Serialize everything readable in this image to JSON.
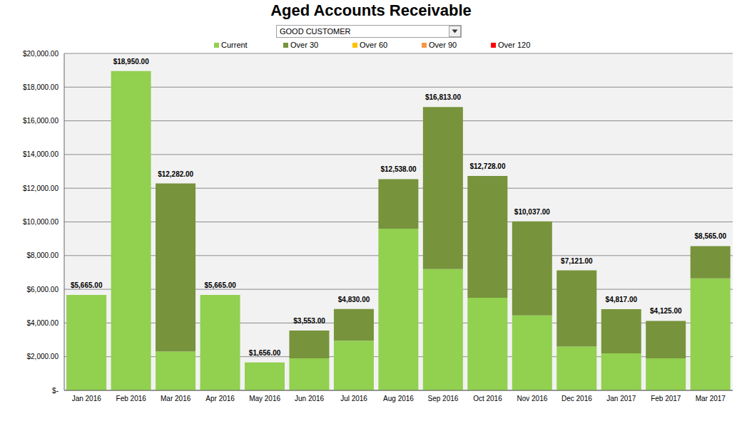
{
  "chart_data": {
    "type": "bar",
    "title": "Aged Accounts Receivable",
    "subtitle": "GOOD CUSTOMER",
    "categories": [
      "Jan 2016",
      "Feb 2016",
      "Mar 2016",
      "Apr 2016",
      "May 2016",
      "Jun 2016",
      "Jul 2016",
      "Aug 2016",
      "Sep 2016",
      "Oct 2016",
      "Nov 2016",
      "Dec 2016",
      "Jan 2017",
      "Feb 2017",
      "Mar 2017"
    ],
    "series": [
      {
        "name": "Current",
        "color": "#92d050",
        "values": [
          5665,
          18950,
          2300,
          5665,
          1656,
          1900,
          2950,
          9600,
          7200,
          5500,
          4450,
          2600,
          2200,
          1900,
          6650
        ]
      },
      {
        "name": "Over 30",
        "color": "#77933c",
        "values": [
          0,
          0,
          9982,
          0,
          0,
          1653,
          1880,
          2938,
          9613,
          7228,
          5587,
          4521,
          2617,
          2225,
          1915
        ]
      },
      {
        "name": "Over 60",
        "color": "#ffc000",
        "values": [
          0,
          0,
          0,
          0,
          0,
          0,
          0,
          0,
          0,
          0,
          0,
          0,
          0,
          0,
          0
        ]
      },
      {
        "name": "Over 90",
        "color": "#f79646",
        "values": [
          0,
          0,
          0,
          0,
          0,
          0,
          0,
          0,
          0,
          0,
          0,
          0,
          0,
          0,
          0
        ]
      },
      {
        "name": "Over 120",
        "color": "#ff0000",
        "values": [
          0,
          0,
          0,
          0,
          0,
          0,
          0,
          0,
          0,
          0,
          0,
          0,
          0,
          0,
          0
        ]
      }
    ],
    "totals": [
      5665,
      18950,
      12282,
      5665,
      1656,
      3553,
      4830,
      12538,
      16813,
      12728,
      10037,
      7121,
      4817,
      4125,
      8565
    ],
    "total_labels": [
      "$5,665.00",
      "$18,950.00",
      "$12,282.00",
      "$5,665.00",
      "$1,656.00",
      "$3,553.00",
      "$4,830.00",
      "$12,538.00",
      "$16,813.00",
      "$12,728.00",
      "$10,037.00",
      "$7,121.00",
      "$4,817.00",
      "$4,125.00",
      "$8,565.00"
    ],
    "stacked": true,
    "ylim": [
      0,
      20000
    ],
    "yticks": [
      {
        "value": 0,
        "label": "$-"
      },
      {
        "value": 2000,
        "label": "$2,000.00"
      },
      {
        "value": 4000,
        "label": "$4,000.00"
      },
      {
        "value": 6000,
        "label": "$6,000.00"
      },
      {
        "value": 8000,
        "label": "$8,000.00"
      },
      {
        "value": 10000,
        "label": "$10,000.00"
      },
      {
        "value": 12000,
        "label": "$12,000.00"
      },
      {
        "value": 14000,
        "label": "$14,000.00"
      },
      {
        "value": 16000,
        "label": "$16,000.00"
      },
      {
        "value": 18000,
        "label": "$18,000.00"
      },
      {
        "value": 20000,
        "label": "$20,000.00"
      }
    ],
    "grid": true,
    "legend": "top"
  }
}
